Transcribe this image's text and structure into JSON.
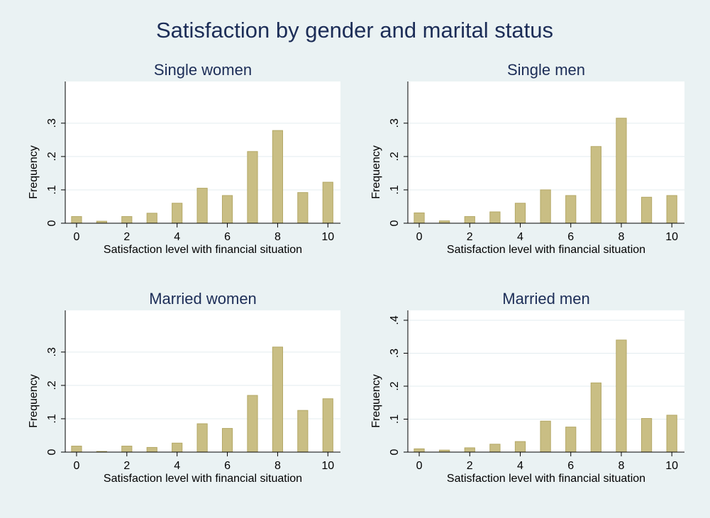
{
  "title": "Satisfaction by gender and marital status",
  "chart_data": [
    {
      "type": "bar",
      "title": "Single women",
      "x_label": "Satisfaction level with financial situation",
      "y_label": "Frequency",
      "x": [
        0,
        1,
        2,
        3,
        4,
        5,
        6,
        7,
        8,
        9,
        10
      ],
      "values": [
        0.02,
        0.006,
        0.02,
        0.03,
        0.06,
        0.105,
        0.083,
        0.215,
        0.278,
        0.092,
        0.123
      ],
      "color": "#c9be84",
      "xlim": [
        -0.45,
        10.5
      ],
      "xticks": [
        0,
        2,
        4,
        6,
        8,
        10
      ],
      "ylim": [
        0,
        0.425
      ],
      "yticks": [
        0,
        {
          "value": 0.1,
          "label": ".1"
        },
        {
          "value": 0.2,
          "label": ".2"
        },
        {
          "value": 0.3,
          "label": ".3"
        }
      ],
      "grid": true
    },
    {
      "type": "bar",
      "title": "Single men",
      "x_label": "Satisfaction level with financial situation",
      "y_label": "Frequency",
      "x": [
        0,
        1,
        2,
        3,
        4,
        5,
        6,
        7,
        8,
        9,
        10
      ],
      "values": [
        0.031,
        0.007,
        0.02,
        0.034,
        0.06,
        0.1,
        0.083,
        0.23,
        0.315,
        0.078,
        0.083
      ],
      "color": "#c9be84",
      "xlim": [
        -0.45,
        10.5
      ],
      "xticks": [
        0,
        2,
        4,
        6,
        8,
        10
      ],
      "ylim": [
        0,
        0.425
      ],
      "yticks": [
        0,
        {
          "value": 0.1,
          "label": ".1"
        },
        {
          "value": 0.2,
          "label": ".2"
        },
        {
          "value": 0.3,
          "label": ".3"
        }
      ],
      "grid": true
    },
    {
      "type": "bar",
      "title": "Married women",
      "x_label": "Satisfaction level with financial situation",
      "y_label": "Frequency",
      "x": [
        0,
        1,
        2,
        3,
        4,
        5,
        6,
        7,
        8,
        9,
        10
      ],
      "values": [
        0.018,
        0.002,
        0.018,
        0.014,
        0.027,
        0.085,
        0.071,
        0.17,
        0.315,
        0.125,
        0.16
      ],
      "color": "#c9be84",
      "xlim": [
        -0.45,
        10.5
      ],
      "xticks": [
        0,
        2,
        4,
        6,
        8,
        10
      ],
      "ylim": [
        0,
        0.425
      ],
      "yticks": [
        0,
        {
          "value": 0.1,
          "label": ".1"
        },
        {
          "value": 0.2,
          "label": ".2"
        },
        {
          "value": 0.3,
          "label": ".3"
        }
      ],
      "grid": true
    },
    {
      "type": "bar",
      "title": "Married men",
      "x_label": "Satisfaction level with financial situation",
      "y_label": "Frequency",
      "x": [
        0,
        1,
        2,
        3,
        4,
        5,
        6,
        7,
        8,
        9,
        10
      ],
      "values": [
        0.01,
        0.006,
        0.013,
        0.024,
        0.032,
        0.094,
        0.076,
        0.21,
        0.34,
        0.102,
        0.112
      ],
      "color": "#c9be84",
      "xlim": [
        -0.45,
        10.5
      ],
      "xticks": [
        0,
        2,
        4,
        6,
        8,
        10
      ],
      "ylim": [
        0,
        0.43
      ],
      "yticks": [
        0,
        {
          "value": 0.1,
          "label": ".1"
        },
        {
          "value": 0.2,
          "label": ".2"
        },
        {
          "value": 0.3,
          "label": ".3"
        },
        {
          "value": 0.4,
          "label": ".4"
        }
      ],
      "grid": true
    }
  ]
}
